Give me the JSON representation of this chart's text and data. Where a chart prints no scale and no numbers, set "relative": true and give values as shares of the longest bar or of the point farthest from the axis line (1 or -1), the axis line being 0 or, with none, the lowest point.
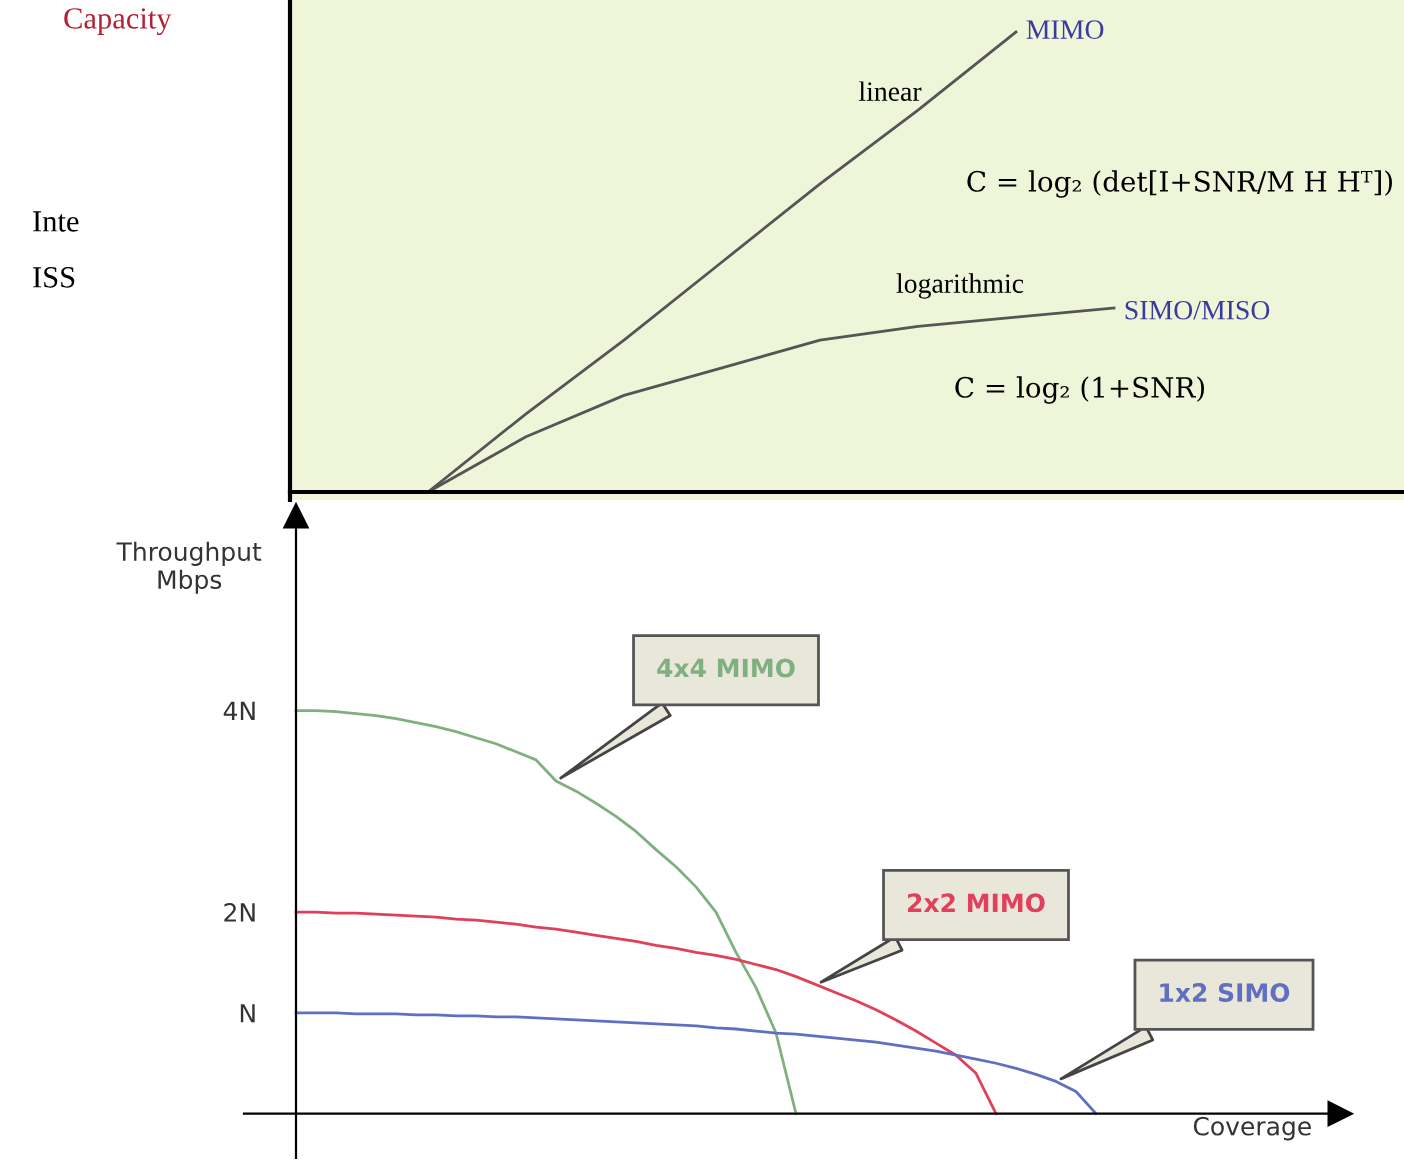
{
  "chart_data": [
    {
      "type": "line",
      "relative": true,
      "ylabel": "Capacity",
      "categories": [
        null,
        null,
        null,
        null,
        null,
        null,
        null,
        null
      ],
      "series": [
        {
          "name": "MIMO",
          "color": "#555555",
          "values": [
            0,
            0.17,
            0.33,
            0.5,
            0.67,
            0.83,
            1,
            null
          ]
        },
        {
          "name": "SIMO/MISO",
          "color": "#555555",
          "values": [
            0,
            0.12,
            0.21,
            0.27,
            0.33,
            0.36,
            0.38,
            0.4
          ]
        }
      ],
      "annotations": [
        "linear",
        "logarithmic",
        "C = log₂ (det[I+SNR/M H Hᵀ])",
        "C = log₂ (1+SNR)",
        "Inte",
        "ISS"
      ],
      "grid": false,
      "legend": false,
      "marker": "none",
      "line_style": "solid"
    },
    {
      "type": "line",
      "xlabel": "Coverage",
      "ylabel": "Throughput\nMbps",
      "categories": [
        null,
        null,
        null,
        null,
        null,
        null,
        null,
        null,
        null,
        null,
        null,
        null,
        null,
        null,
        null,
        null,
        null,
        null,
        null,
        null,
        null,
        null,
        null,
        null,
        null,
        null,
        null,
        null,
        null,
        null,
        null,
        null,
        null,
        null,
        null,
        null,
        null,
        null,
        null,
        null,
        null
      ],
      "series": [
        {
          "name": "4x4 MIMO",
          "color": "#7fb07f",
          "values": [
            4.0,
            4.0,
            3.99,
            3.97,
            3.95,
            3.92,
            3.88,
            3.84,
            3.79,
            3.73,
            3.67,
            3.59,
            3.51,
            3.3,
            3.2,
            3.08,
            2.95,
            2.8,
            2.62,
            2.45,
            2.25,
            2.0,
            1.6,
            1.25,
            0.8,
            0,
            null,
            null,
            null,
            null,
            null,
            null,
            null,
            null,
            null,
            null,
            null,
            null,
            null,
            null,
            null
          ]
        },
        {
          "name": "2x2 MIMO",
          "color": "#e0405a",
          "values": [
            2.0,
            2.0,
            1.99,
            1.99,
            1.98,
            1.97,
            1.96,
            1.95,
            1.93,
            1.92,
            1.9,
            1.88,
            1.85,
            1.83,
            1.8,
            1.77,
            1.74,
            1.71,
            1.67,
            1.64,
            1.6,
            1.57,
            1.53,
            1.48,
            1.43,
            1.36,
            1.28,
            1.2,
            1.12,
            1.03,
            0.93,
            0.82,
            0.7,
            0.58,
            0.4,
            0,
            null,
            null,
            null,
            null,
            null
          ]
        },
        {
          "name": "1x2 SIMO",
          "color": "#6070c0",
          "values": [
            1.0,
            1.0,
            1.0,
            0.99,
            0.99,
            0.99,
            0.98,
            0.98,
            0.97,
            0.97,
            0.96,
            0.96,
            0.95,
            0.94,
            0.93,
            0.92,
            0.91,
            0.9,
            0.89,
            0.88,
            0.87,
            0.85,
            0.84,
            0.82,
            0.8,
            0.79,
            0.77,
            0.75,
            0.73,
            0.71,
            0.68,
            0.65,
            0.62,
            0.58,
            0.54,
            0.5,
            0.45,
            0.39,
            0.32,
            0.22,
            0
          ]
        }
      ],
      "ylim": [
        -0.44,
        5.93
      ],
      "yticks": [
        {
          "value": 1,
          "label": "N"
        },
        {
          "value": 2,
          "label": "2N"
        },
        {
          "value": 4,
          "label": "4N"
        }
      ],
      "grid": false,
      "legend": false,
      "marker": "none",
      "line_style": "solid"
    }
  ]
}
